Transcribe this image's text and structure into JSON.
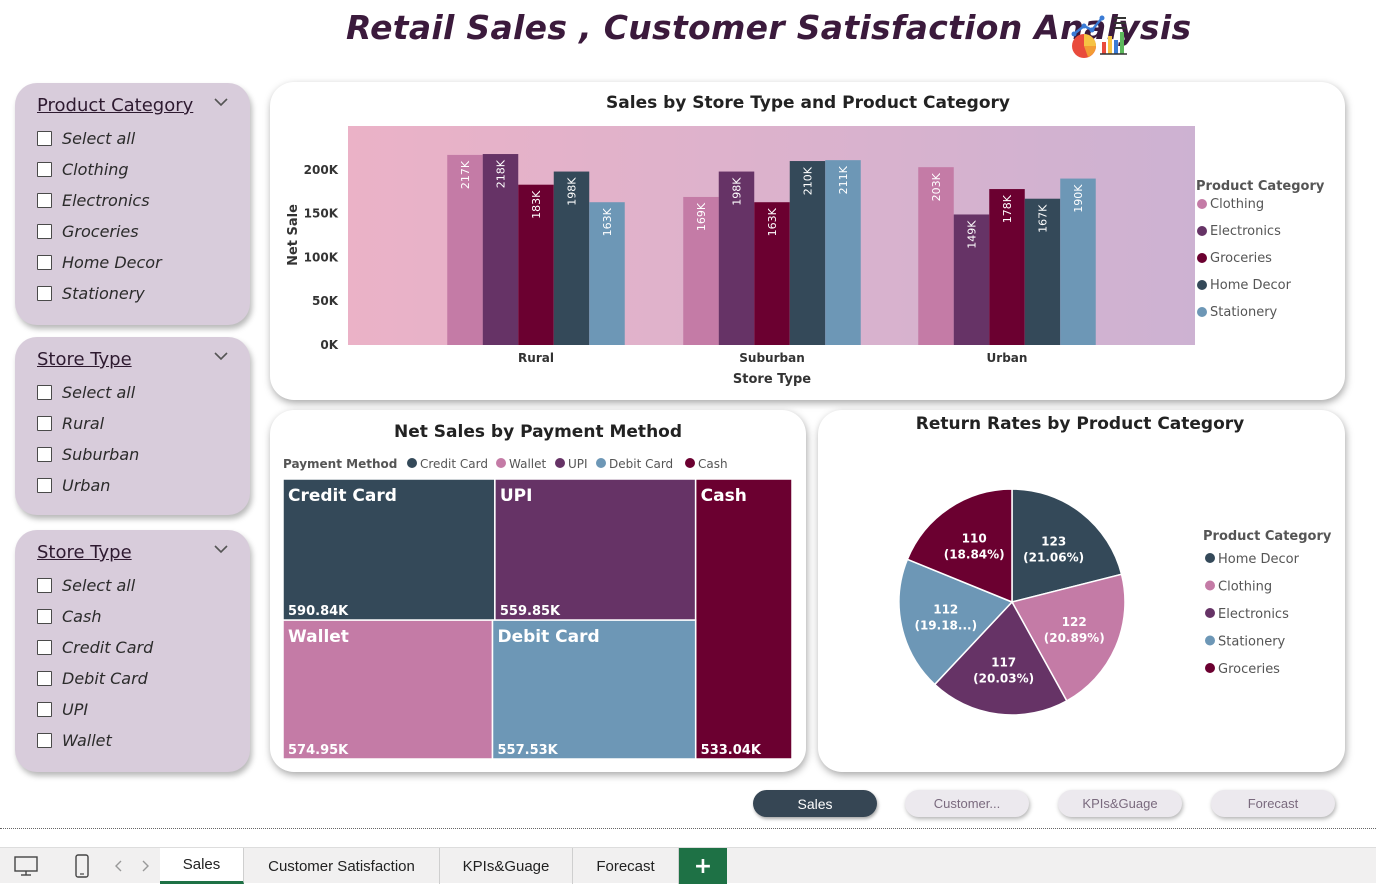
{
  "title": "Retail Sales , Customer Satisfaction Analysis",
  "title_icon": "chart-emoji-icon",
  "slicers": [
    {
      "title": "Product Category",
      "items": [
        "Select all",
        "Clothing",
        "Electronics",
        "Groceries",
        "Home Decor",
        "Stationery"
      ]
    },
    {
      "title": "Store Type",
      "items": [
        "Select all",
        "Rural",
        "Suburban",
        "Urban"
      ]
    },
    {
      "title": "Store Type",
      "items": [
        "Select all",
        "Cash",
        "Credit Card",
        "Debit Card",
        "UPI",
        "Wallet"
      ]
    }
  ],
  "colors": {
    "clothing": "#c47ba6",
    "electronics": "#663366",
    "groceries": "#6b0030",
    "home_decor": "#344959",
    "stationery": "#6d97b6"
  },
  "chart_data": [
    {
      "type": "bar",
      "title": "Sales by Store Type and Product Category",
      "xlabel": "Store Type",
      "ylabel": "Net Sale",
      "categories": [
        "Rural",
        "Suburban",
        "Urban"
      ],
      "ylim": [
        0,
        250000
      ],
      "yticks": [
        "0K",
        "50K",
        "100K",
        "150K",
        "200K"
      ],
      "legend_title": "Product Category",
      "legend_position": "right",
      "series": [
        {
          "name": "Clothing",
          "color": "#c47ba6",
          "values": [
            217,
            169,
            203
          ],
          "labels": [
            "217K",
            "169K",
            "203K"
          ]
        },
        {
          "name": "Electronics",
          "color": "#663366",
          "values": [
            218,
            198,
            149
          ],
          "labels": [
            "218K",
            "198K",
            "149K"
          ]
        },
        {
          "name": "Groceries",
          "color": "#6b0030",
          "values": [
            183,
            163,
            178
          ],
          "labels": [
            "183K",
            "163K",
            "178K"
          ]
        },
        {
          "name": "Home Decor",
          "color": "#344959",
          "values": [
            198,
            210,
            167
          ],
          "labels": [
            "198K",
            "210K",
            "167K"
          ]
        },
        {
          "name": "Stationery",
          "color": "#6d97b6",
          "values": [
            163,
            211,
            190
          ],
          "labels": [
            "163K",
            "211K",
            "190K"
          ]
        }
      ]
    },
    {
      "type": "treemap",
      "title": "Net Sales by Payment Method",
      "legend_title": "Payment Method",
      "legend": [
        {
          "name": "Credit Card",
          "color": "#344959"
        },
        {
          "name": "Wallet",
          "color": "#c47ba6"
        },
        {
          "name": "UPI",
          "color": "#663366"
        },
        {
          "name": "Debit Card",
          "color": "#6d97b6"
        },
        {
          "name": "Cash",
          "color": "#6b0030"
        }
      ],
      "items": [
        {
          "name": "Credit Card",
          "value": 590.84,
          "label": "590.84K",
          "color": "#344959"
        },
        {
          "name": "UPI",
          "value": 559.85,
          "label": "559.85K",
          "color": "#663366"
        },
        {
          "name": "Cash",
          "value": 533.04,
          "label": "533.04K",
          "color": "#6b0030"
        },
        {
          "name": "Wallet",
          "value": 574.95,
          "label": "574.95K",
          "color": "#c47ba6"
        },
        {
          "name": "Debit Card",
          "value": 557.53,
          "label": "557.53K",
          "color": "#6d97b6"
        }
      ]
    },
    {
      "type": "pie",
      "title": "Return Rates by Product Category",
      "legend_title": "Product Category",
      "legend_position": "right",
      "slices": [
        {
          "name": "Home Decor",
          "value": 123,
          "label_value": "123",
          "label_pct": "(21.06%)",
          "color": "#344959"
        },
        {
          "name": "Clothing",
          "value": 122,
          "label_value": "122",
          "label_pct": "(20.89%)",
          "color": "#c47ba6"
        },
        {
          "name": "Electronics",
          "value": 117,
          "label_value": "117",
          "label_pct": "(20.03%)",
          "color": "#663366"
        },
        {
          "name": "Stationery",
          "value": 112,
          "label_value": "112",
          "label_pct": "(19.18...)",
          "color": "#6d97b6"
        },
        {
          "name": "Groceries",
          "value": 110,
          "label_value": "110",
          "label_pct": "(18.84%)",
          "color": "#6b0030"
        }
      ]
    }
  ],
  "nav_buttons": [
    "Sales",
    "Customer...",
    "KPIs&Guage",
    "Forecast"
  ],
  "tabs": [
    "Sales",
    "Customer Satisfaction",
    "KPIs&Guage",
    "Forecast"
  ],
  "add_tab": "+"
}
